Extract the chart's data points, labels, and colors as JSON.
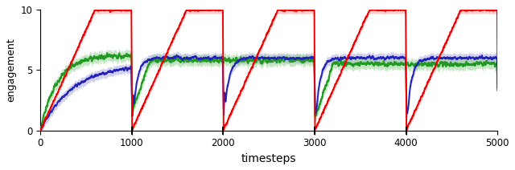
{
  "xlabel": "timesteps",
  "ylabel": "engagement",
  "xlim": [
    0,
    5000
  ],
  "ylim": [
    0,
    10
  ],
  "xticks": [
    0,
    1000,
    2000,
    3000,
    4000,
    5000
  ],
  "yticks": [
    0,
    5,
    10
  ],
  "reset_points": [
    1000,
    2000,
    3000,
    4000
  ],
  "n_steps": 5000,
  "red_color": "#EE0000",
  "red_shade": "#FFAAAA",
  "blue_color": "#2222BB",
  "blue_shade": "#AAAADD",
  "green_color": "#229922",
  "green_shade": "#88CC88",
  "background_color": "#FFFFFF",
  "red_rise_steps": 600,
  "red_plateau": 10.0,
  "blue_plateau": 6.0,
  "green_plateau": 6.0
}
